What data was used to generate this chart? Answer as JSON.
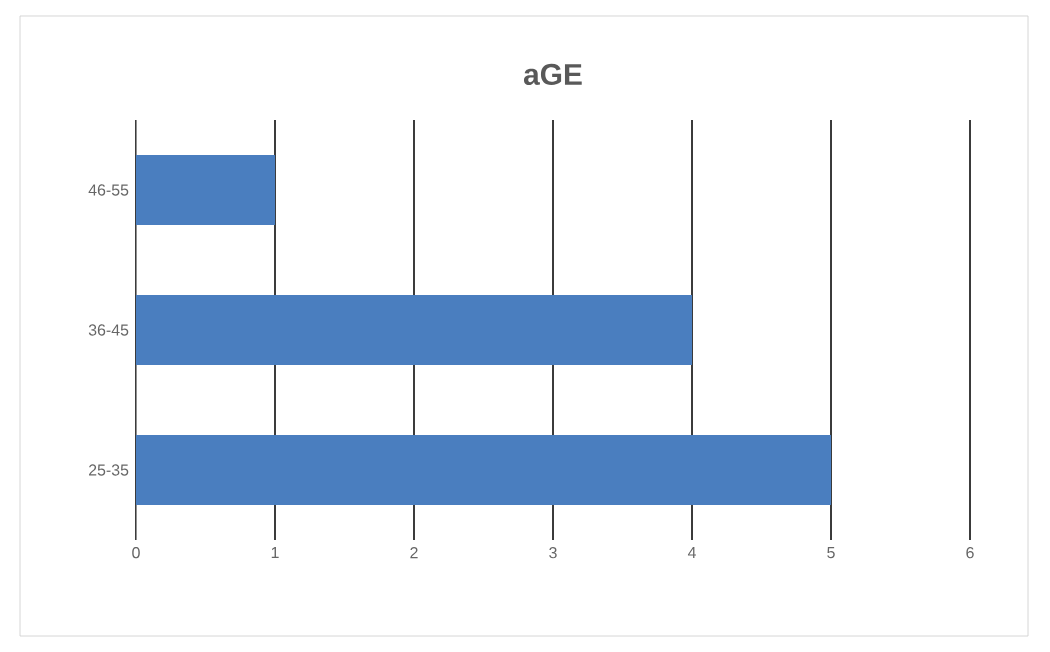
{
  "chart_data": {
    "type": "bar",
    "orientation": "horizontal",
    "title": "aGE",
    "categories": [
      "46-55",
      "36-45",
      "25-35"
    ],
    "values": [
      1,
      4,
      5
    ],
    "color": "#4a7ebf",
    "xlim": [
      0,
      6
    ],
    "xticks": [
      0,
      1,
      2,
      3,
      4,
      5,
      6
    ],
    "grid": "x"
  }
}
